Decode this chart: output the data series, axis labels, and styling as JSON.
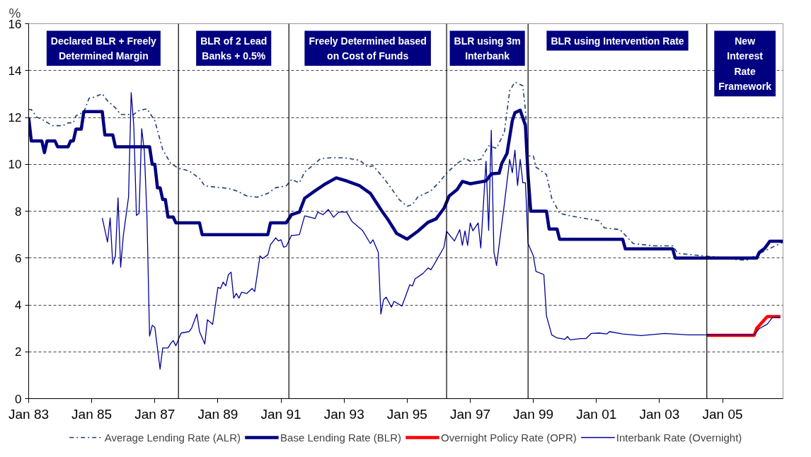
{
  "chart_data": {
    "type": "line",
    "ylabel": "%",
    "xlim": [
      "1983-01",
      "2006-12"
    ],
    "ylim": [
      0,
      16
    ],
    "yticks": [
      0,
      2,
      4,
      6,
      8,
      10,
      12,
      14,
      16
    ],
    "xticks": [
      {
        "value": "1983-01",
        "label": "Jan 83"
      },
      {
        "value": "1985-01",
        "label": "Jan 85"
      },
      {
        "value": "1987-01",
        "label": "Jan 87"
      },
      {
        "value": "1989-01",
        "label": "Jan 89"
      },
      {
        "value": "1991-01",
        "label": "Jan 91"
      },
      {
        "value": "1993-01",
        "label": "Jan 93"
      },
      {
        "value": "1995-01",
        "label": "Jan 95"
      },
      {
        "value": "1997-01",
        "label": "Jan 97"
      },
      {
        "value": "1999-01",
        "label": "Jan 99"
      },
      {
        "value": "2001-01",
        "label": "Jan 01"
      },
      {
        "value": "2003-01",
        "label": "Jan 03"
      },
      {
        "value": "2005-01",
        "label": "Jan 05"
      }
    ],
    "grid": "y",
    "legend": "bottom",
    "marker": "none",
    "series": [
      {
        "name": "Average Lending Rate (ALR)",
        "color": "#1f3f6e",
        "line_style": "dashdot",
        "x": [
          "1983-01",
          "1983-02",
          "1983-04",
          "1983-07",
          "1983-10",
          "1984-02",
          "1984-04",
          "1984-06",
          "1984-07",
          "1984-10",
          "1984-12",
          "1985-02",
          "1985-05",
          "1985-07",
          "1985-10",
          "1985-12",
          "1986-05",
          "1986-07",
          "1986-10",
          "1987-01",
          "1987-04",
          "1987-07",
          "1987-10",
          "1988-02",
          "1988-06",
          "1988-08",
          "1988-12",
          "1989-05",
          "1989-08",
          "1989-12",
          "1990-04",
          "1990-08",
          "1990-11",
          "1991-03",
          "1991-05",
          "1991-08",
          "1991-10",
          "1992-01",
          "1992-04",
          "1992-08",
          "1993-01",
          "1993-07",
          "1993-10",
          "1993-12",
          "1994-04",
          "1994-07",
          "1994-10",
          "1995-01",
          "1995-03",
          "1995-05",
          "1995-10",
          "1996-01",
          "1996-04",
          "1996-08",
          "1996-11",
          "1997-01",
          "1997-05",
          "1997-08",
          "1997-11",
          "1998-02",
          "1998-04",
          "1998-06",
          "1998-09",
          "1998-10",
          "1998-11",
          "1999-01",
          "1999-02",
          "1999-06",
          "1999-08",
          "1999-11",
          "2000-03",
          "2001-02",
          "2001-04",
          "2001-10",
          "2002-03",
          "2002-11",
          "2003-06",
          "2003-08",
          "2004-06",
          "2004-11",
          "2005-05",
          "2005-10",
          "2006-05",
          "2006-12"
        ],
        "values": [
          12.34,
          12.34,
          12.02,
          11.86,
          11.65,
          11.65,
          11.77,
          11.77,
          12.07,
          12.23,
          12.82,
          12.87,
          13.01,
          12.71,
          12.41,
          12.13,
          12.13,
          12.29,
          12.37,
          11.86,
          10.63,
          10.04,
          9.83,
          9.72,
          9.4,
          9.08,
          9.03,
          8.97,
          8.87,
          8.65,
          8.6,
          8.76,
          9.0,
          9.08,
          9.35,
          9.21,
          9.67,
          9.94,
          10.24,
          10.28,
          10.28,
          10.17,
          9.88,
          9.94,
          9.42,
          8.97,
          8.49,
          8.21,
          8.28,
          8.6,
          8.87,
          9.21,
          9.62,
          10.04,
          10.26,
          10.13,
          10.21,
          10.79,
          10.68,
          11.38,
          13.14,
          13.51,
          13.35,
          12.29,
          10.36,
          10.36,
          9.88,
          9.56,
          8.55,
          7.91,
          7.8,
          7.59,
          7.29,
          7.21,
          6.62,
          6.52,
          6.52,
          6.2,
          6.09,
          6.04,
          5.95,
          5.9,
          6.3,
          6.68
        ]
      },
      {
        "name": "Base Lending Rate (BLR)",
        "color": "#000080",
        "line_style": "solid",
        "x": [
          "1983-01",
          "1983-02",
          "1983-06",
          "1983-07",
          "1983-08",
          "1983-11",
          "1983-12",
          "1984-04",
          "1984-05",
          "1984-06",
          "1984-07",
          "1984-09",
          "1984-10",
          "1985-05",
          "1985-06",
          "1985-09",
          "1985-10",
          "1986-11",
          "1986-12",
          "1987-01",
          "1987-02",
          "1987-03",
          "1987-04",
          "1987-05",
          "1987-06",
          "1987-08",
          "1987-09",
          "1988-06",
          "1988-07",
          "1990-08",
          "1990-09",
          "1991-03",
          "1991-05",
          "1991-08",
          "1991-10",
          "1992-02",
          "1992-06",
          "1992-10",
          "1993-02",
          "1993-07",
          "1993-11",
          "1994-03",
          "1994-06",
          "1994-09",
          "1995-01",
          "1995-05",
          "1995-09",
          "1995-12",
          "1996-03",
          "1996-05",
          "1996-08",
          "1996-10",
          "1997-01",
          "1997-07",
          "1997-09",
          "1997-12",
          "1998-01",
          "1998-03",
          "1998-05",
          "1998-06",
          "1998-08",
          "1998-10",
          "1998-11",
          "1998-12",
          "1999-06",
          "1999-07",
          "1999-10",
          "1999-11",
          "2001-11",
          "2001-12",
          "2003-06",
          "2003-07",
          "2006-02",
          "2006-03",
          "2006-05",
          "2006-07",
          "2006-12"
        ],
        "values": [
          12.0,
          11.0,
          11.0,
          10.5,
          11.0,
          11.0,
          10.75,
          10.75,
          11.0,
          11.0,
          11.5,
          11.5,
          12.25,
          12.25,
          11.25,
          11.25,
          10.75,
          10.75,
          10.0,
          10.0,
          9.0,
          9.0,
          8.5,
          8.5,
          7.75,
          7.75,
          7.5,
          7.5,
          7.0,
          7.0,
          7.5,
          7.5,
          7.85,
          7.96,
          8.55,
          8.87,
          9.17,
          9.42,
          9.29,
          9.08,
          8.76,
          8.07,
          7.59,
          7.05,
          6.81,
          7.14,
          7.53,
          7.67,
          8.12,
          8.65,
          8.92,
          9.27,
          9.17,
          9.29,
          9.59,
          9.62,
          10.04,
          10.47,
          11.86,
          12.2,
          12.31,
          11.65,
          9.51,
          8.0,
          8.0,
          7.24,
          7.24,
          6.8,
          6.8,
          6.39,
          6.39,
          6.0,
          6.0,
          6.25,
          6.41,
          6.72,
          6.72
        ]
      },
      {
        "name": "Overnight Policy Rate (OPR)",
        "color": "#ff0000",
        "line_style": "solid",
        "x": [
          "2004-07",
          "2006-01",
          "2006-02",
          "2006-04",
          "2006-06",
          "2006-11"
        ],
        "values": [
          2.7,
          2.7,
          3.0,
          3.25,
          3.5,
          3.5
        ]
      },
      {
        "name": "Interbank Rate (Overnight)",
        "color": "#000099",
        "line_style": "solid",
        "x": [
          "1985-05",
          "1985-07",
          "1985-08",
          "1985-09",
          "1985-10",
          "1985-11",
          "1985-12",
          "1986-01",
          "1986-03",
          "1986-04",
          "1986-05",
          "1986-06",
          "1986-07",
          "1986-08",
          "1986-09",
          "1986-10",
          "1986-11",
          "1986-12",
          "1987-01",
          "1987-03",
          "1987-04",
          "1987-06",
          "1987-07",
          "1987-08",
          "1987-09",
          "1987-11",
          "1988-02",
          "1988-03",
          "1988-05",
          "1988-06",
          "1988-08",
          "1988-09",
          "1988-11",
          "1989-01",
          "1989-02",
          "1989-03",
          "1989-04",
          "1989-05",
          "1989-06",
          "1989-07",
          "1989-08",
          "1989-09",
          "1989-10",
          "1989-12",
          "1990-02",
          "1990-03",
          "1990-05",
          "1990-06",
          "1990-08",
          "1990-09",
          "1990-11",
          "1990-12",
          "1991-01",
          "1991-02",
          "1991-03",
          "1991-05",
          "1991-06",
          "1991-08",
          "1991-10",
          "1992-02",
          "1992-03",
          "1992-05",
          "1992-07",
          "1992-09",
          "1992-11",
          "1993-02",
          "1993-04",
          "1993-08",
          "1993-11",
          "1993-12",
          "1994-02",
          "1994-03",
          "1994-04",
          "1994-05",
          "1994-07",
          "1994-08",
          "1994-11",
          "1995-02",
          "1995-03",
          "1995-04",
          "1995-07",
          "1995-09",
          "1995-10",
          "1995-11",
          "1996-03",
          "1996-04",
          "1996-07",
          "1996-09",
          "1996-10",
          "1996-11",
          "1996-12",
          "1997-01",
          "1997-02",
          "1997-04",
          "1997-05",
          "1997-07",
          "1997-08",
          "1997-09",
          "1997-10",
          "1997-11",
          "1998-02",
          "1998-04",
          "1998-05",
          "1998-06",
          "1998-07",
          "1998-08",
          "1998-09",
          "1998-10",
          "1998-11",
          "1999-01",
          "1999-02",
          "1999-05",
          "1999-06",
          "1999-08",
          "1999-10",
          "2000-01",
          "2000-02",
          "2000-03",
          "2000-07",
          "2000-09",
          "2000-11",
          "2001-02",
          "2001-05",
          "2001-06",
          "2001-11",
          "2002-06",
          "2003-03",
          "2003-12",
          "2006-01",
          "2006-03",
          "2006-06",
          "2006-08",
          "2006-11"
        ],
        "values": [
          7.71,
          6.68,
          7.71,
          5.74,
          6.09,
          8.57,
          5.61,
          6.94,
          8.6,
          13.06,
          11.65,
          7.82,
          7.91,
          11.52,
          10.58,
          7.8,
          2.67,
          3.13,
          3.04,
          1.26,
          2.16,
          2.16,
          2.35,
          2.48,
          2.26,
          2.8,
          2.86,
          3.01,
          3.61,
          2.86,
          2.33,
          3.37,
          3.17,
          4.75,
          4.7,
          4.97,
          4.81,
          5.29,
          5.4,
          4.29,
          4.49,
          4.29,
          4.54,
          4.49,
          4.7,
          4.57,
          6.09,
          5.98,
          6.14,
          6.57,
          6.86,
          6.73,
          6.78,
          6.46,
          6.5,
          6.97,
          6.97,
          7.0,
          7.8,
          7.69,
          7.96,
          7.85,
          8.07,
          7.74,
          7.96,
          7.96,
          7.56,
          7.18,
          6.62,
          6.78,
          6.25,
          3.61,
          4.22,
          4.33,
          3.9,
          4.15,
          3.95,
          4.86,
          4.81,
          5.11,
          5.34,
          5.58,
          5.5,
          5.68,
          6.46,
          7.14,
          6.73,
          7.21,
          6.54,
          7.16,
          6.54,
          7.5,
          7.16,
          7.5,
          6.43,
          10.13,
          7.18,
          11.45,
          6.25,
          5.68,
          8.33,
          10.21,
          9.64,
          10.6,
          9.1,
          10.21,
          9.21,
          9.21,
          6.62,
          6.09,
          5.43,
          5.29,
          3.53,
          2.72,
          2.59,
          2.53,
          2.65,
          2.51,
          2.56,
          2.56,
          2.78,
          2.8,
          2.76,
          2.86,
          2.76,
          2.69,
          2.78,
          2.72,
          2.72,
          2.99,
          3.18,
          3.47,
          3.47
        ]
      }
    ],
    "ref_lines": [
      {
        "axis": "x",
        "value": "1987-10",
        "color": "#000000"
      },
      {
        "axis": "x",
        "value": "1991-04",
        "color": "#000000"
      },
      {
        "axis": "x",
        "value": "1996-04",
        "color": "#000000"
      },
      {
        "axis": "x",
        "value": "1998-11",
        "color": "#000000"
      },
      {
        "axis": "x",
        "value": "2004-07",
        "color": "#000000"
      }
    ],
    "annotations": [
      "Declared BLR + Freely\nDetermined Margin",
      "BLR of 2 Lead\nBanks + 0.5%",
      "Freely Determined based\non Cost of Funds",
      "BLR using 3m\nInterbank",
      "BLR using Intervention Rate",
      "New\nInterest\nRate\nFramework"
    ]
  }
}
